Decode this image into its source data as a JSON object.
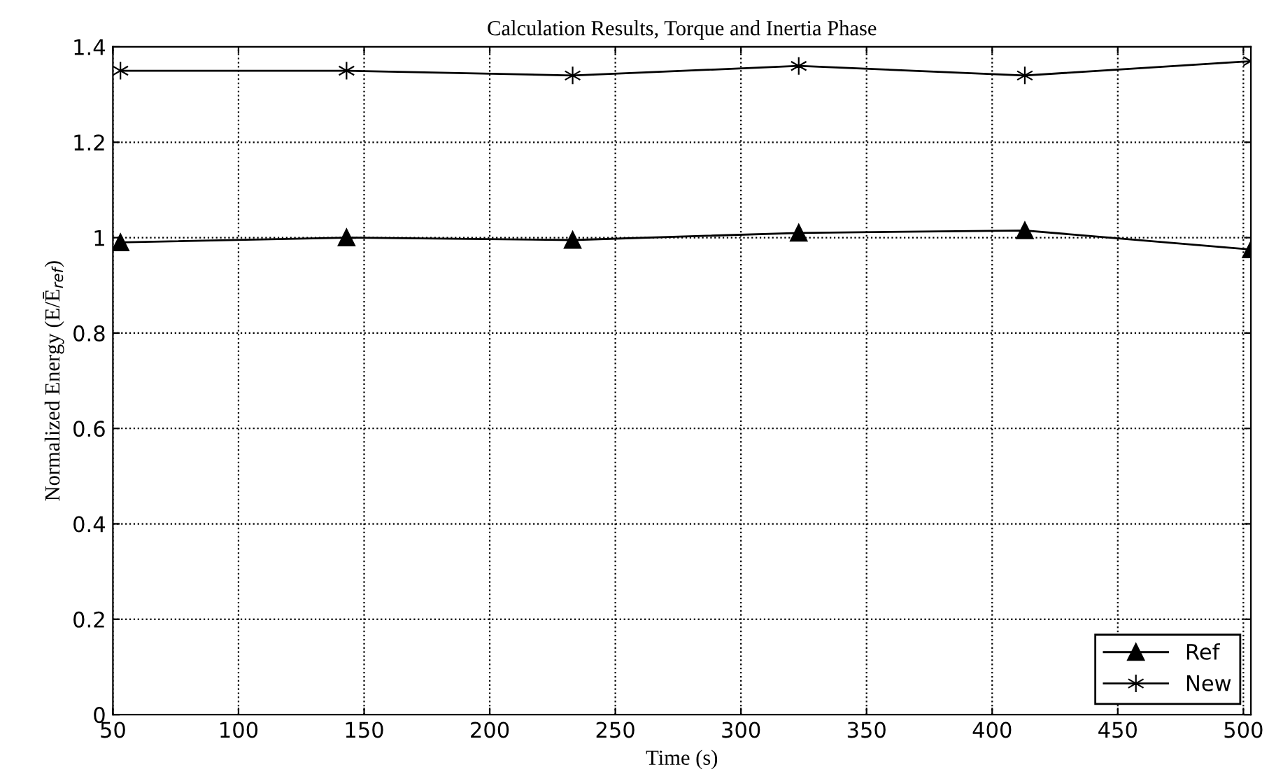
{
  "chart_data": {
    "type": "line",
    "title": "Calculation Results, Torque and Inertia Phase",
    "xlabel": "Time (s)",
    "ylabel": "Normalized Energy (E/Ē$_{ref}$)",
    "x": [
      53,
      143,
      233,
      323,
      413,
      503
    ],
    "series": [
      {
        "name": "Ref",
        "color": "#000000",
        "marker": "triangle",
        "values": [
          0.99,
          1.0,
          0.995,
          1.01,
          1.015,
          0.975
        ]
      },
      {
        "name": "New",
        "color": "#000000",
        "marker": "cross",
        "values": [
          1.35,
          1.35,
          1.34,
          1.36,
          1.34,
          1.37
        ]
      }
    ],
    "xlim": [
      50,
      503
    ],
    "xticks": [
      50,
      100,
      150,
      200,
      250,
      300,
      350,
      400,
      450,
      500
    ],
    "ylim": [
      0,
      1.4
    ],
    "yticks": [
      0,
      {
        "value": 0.2,
        "label": "0.2"
      },
      {
        "value": 0.4,
        "label": "0.4"
      },
      {
        "value": 0.6,
        "label": "0.6"
      },
      {
        "value": 0.8,
        "label": "0.8"
      },
      1,
      {
        "value": 1.2,
        "label": "1.2"
      },
      {
        "value": 1.4,
        "label": "1.4"
      }
    ],
    "grid": true,
    "legend": "bottom right",
    "line_style": "solid"
  }
}
